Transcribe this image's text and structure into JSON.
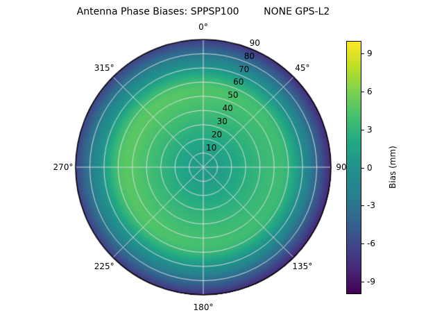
{
  "title": "Antenna Phase Biases: SPPSP100        NONE GPS-L2",
  "chart_data": {
    "type": "heatmap",
    "projection": "polar",
    "title": "Antenna Phase Biases: SPPSP100        NONE GPS-L2",
    "station": "SPPSP100",
    "antenna": "NONE",
    "signal": "GPS-L2",
    "angular_ticks_deg": [
      0,
      45,
      90,
      135,
      180,
      225,
      270,
      315
    ],
    "angular_tick_labels": [
      "0°",
      "45°",
      "90°",
      "135°",
      "180°",
      "225°",
      "270°",
      "315°"
    ],
    "radial_ticks": [
      10,
      20,
      30,
      40,
      50,
      60,
      70,
      80,
      90
    ],
    "radial_label_angle_deg": 22.5,
    "r_max": 90,
    "grid": true,
    "radial_profile": {
      "r": [
        0,
        8,
        16,
        24,
        32,
        40,
        48,
        55,
        60,
        64,
        68,
        72,
        76,
        80,
        84,
        87,
        90
      ],
      "bias_mm": [
        0.7,
        1.0,
        1.6,
        2.3,
        3.0,
        3.6,
        4.1,
        4.3,
        3.6,
        2.4,
        1.0,
        -0.4,
        -2.0,
        -3.4,
        -4.9,
        -6.1,
        -7.2
      ]
    },
    "azimuthal_modulation": {
      "amplitude_mm": 1.0,
      "peak_azimuth_deg": 290
    },
    "colorbar": {
      "label": "Bias (mm)",
      "ticks": [
        -9,
        -6,
        -3,
        0,
        3,
        6,
        9
      ],
      "range": [
        -10,
        10
      ],
      "colormap": "viridis",
      "stops": [
        "#440154",
        "#482878",
        "#3e4989",
        "#31688e",
        "#26828e",
        "#21918c",
        "#22a884",
        "#44bf70",
        "#7ad151",
        "#bddf26",
        "#fde725"
      ]
    }
  },
  "colors": {
    "background": "#ffffff",
    "grid_line": "#dcdcdc",
    "outline": "#000000",
    "text": "#000000"
  }
}
